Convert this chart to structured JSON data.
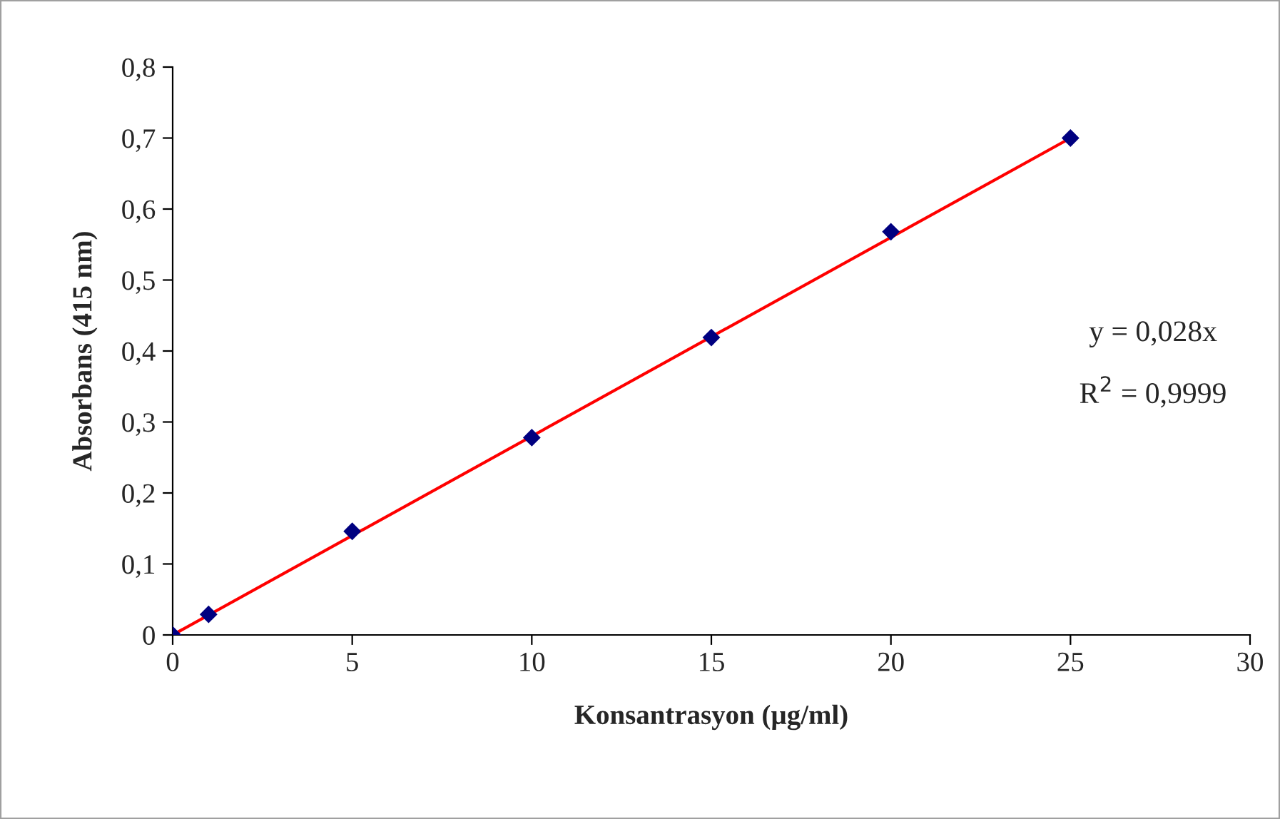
{
  "chart_data": {
    "type": "scatter",
    "xlabel": "Konsantrasyon (µg/ml)",
    "ylabel": "Absorbans (415 nm)",
    "x": [
      0,
      1,
      5,
      10,
      15,
      20,
      25
    ],
    "series": [
      {
        "color": "#000080",
        "marker": "diamond",
        "values": [
          0,
          0.029,
          0.146,
          0.278,
          0.419,
          0.568,
          0.7
        ]
      },
      {
        "type": "line",
        "color": "#ff0000",
        "x": [
          0,
          25
        ],
        "values": [
          0,
          0.7
        ],
        "marker": "none",
        "line_style": "solid"
      }
    ],
    "xlim": [
      0,
      30
    ],
    "xticks": [
      0,
      5,
      10,
      15,
      20,
      25,
      30
    ],
    "ylim": [
      0,
      0.8
    ],
    "yticks": [
      0,
      {
        "value": 0.1,
        "label": "0,1"
      },
      {
        "value": 0.2,
        "label": "0,2"
      },
      {
        "value": 0.3,
        "label": "0,3"
      },
      {
        "value": 0.4,
        "label": "0,4"
      },
      {
        "value": 0.5,
        "label": "0,5"
      },
      {
        "value": 0.6,
        "label": "0,6"
      },
      {
        "value": 0.7,
        "label": "0,7"
      },
      {
        "value": 0.8,
        "label": "0,8"
      }
    ],
    "annotations": [
      "y = 0,028x",
      "R$^{2}$ = 0,9999"
    ],
    "grid": false,
    "legend": false
  }
}
